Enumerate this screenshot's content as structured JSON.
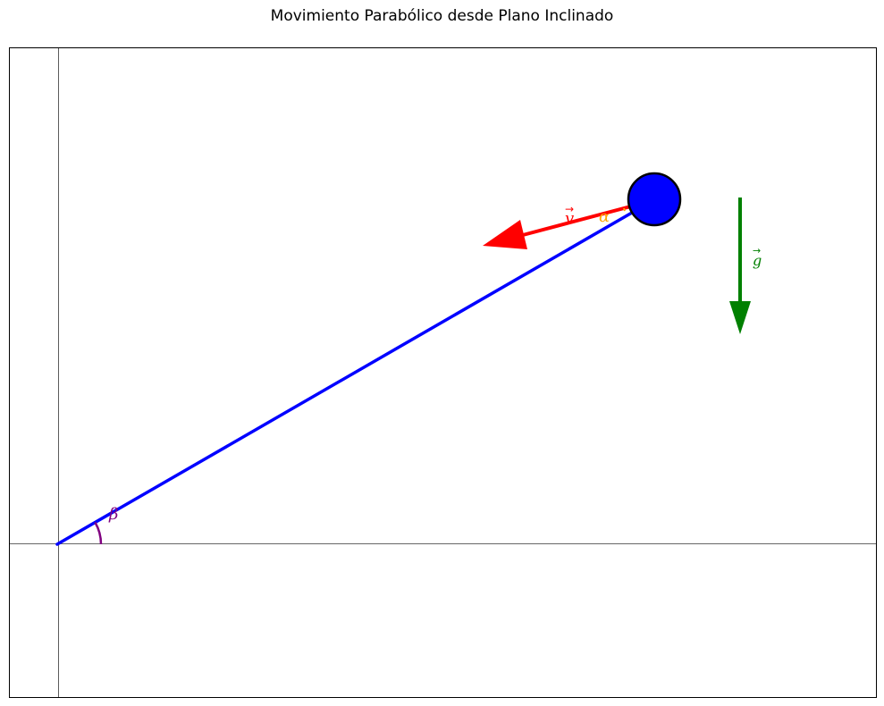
{
  "title": "Movimiento Parabólico desde Plano Inclinado",
  "labels": {
    "velocity": "v",
    "alpha": "α",
    "beta": "β",
    "gravity": "g"
  },
  "colors": {
    "incline": "#0000ff",
    "ball_fill": "#0000ff",
    "ball_stroke": "#000000",
    "velocity": "#ff0000",
    "alpha": "#ffa500",
    "beta": "#800080",
    "gravity": "#008000",
    "axes": "#000000",
    "frame": "#000000"
  }
}
